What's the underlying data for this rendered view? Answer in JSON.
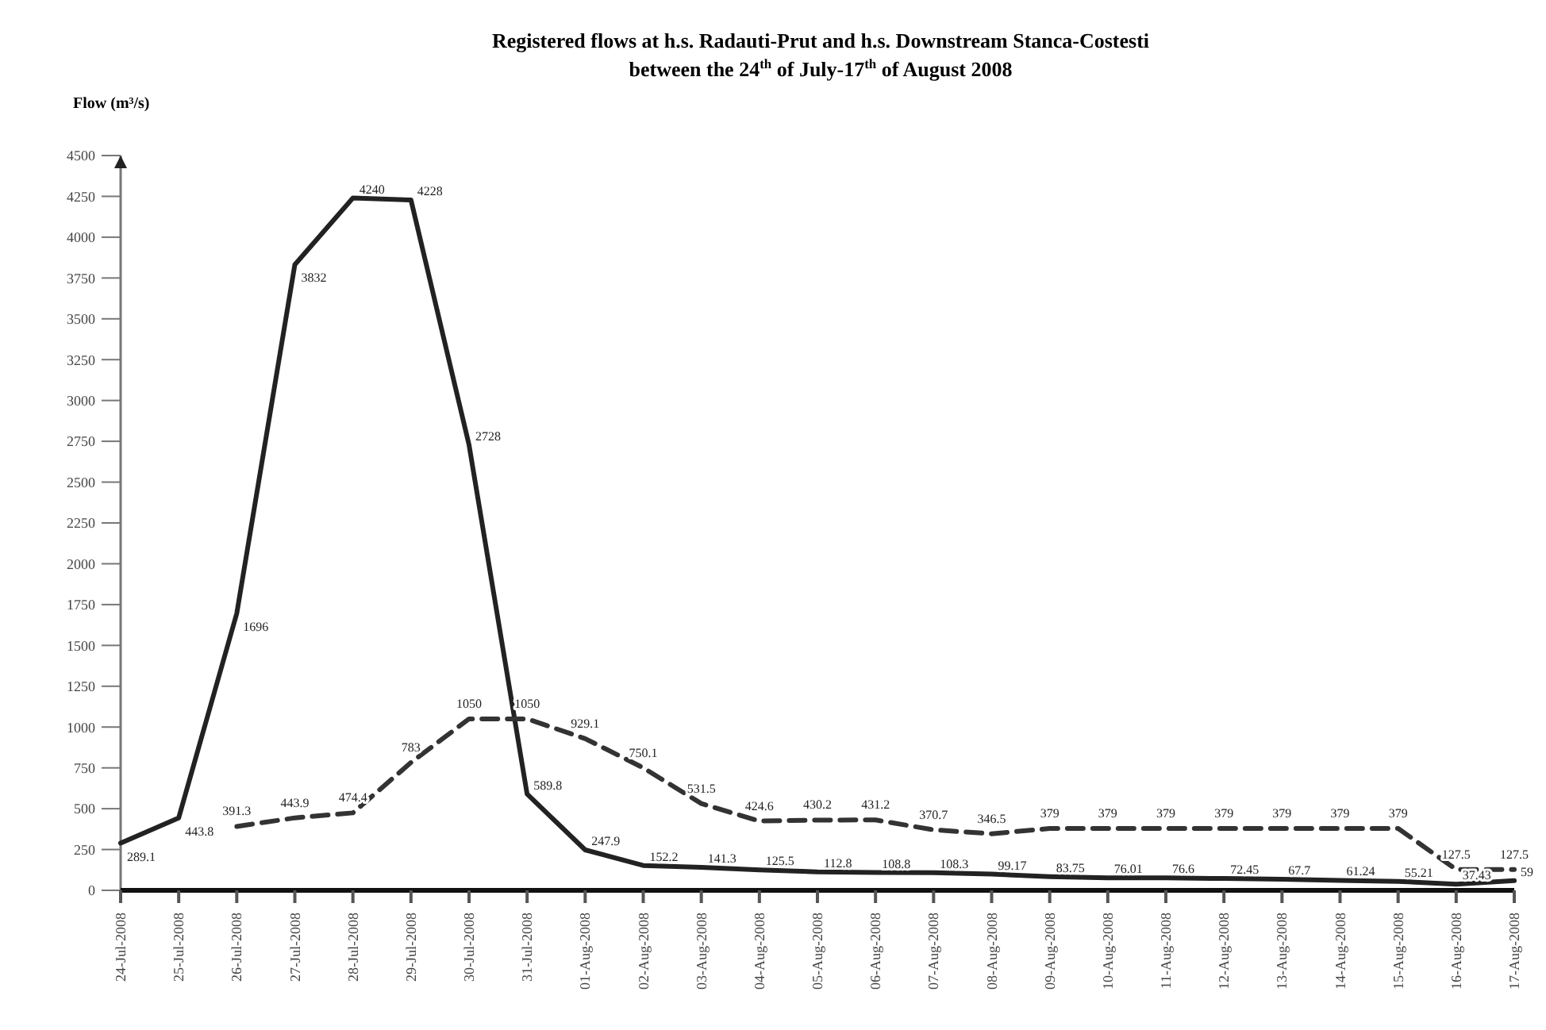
{
  "chart_data": {
    "type": "line",
    "title": "Registered flows at h.s. Radauti-Prut and h.s. Downstream Stanca-Costesti",
    "subtitle": "between the 24$^{th}$ of July-17$^{th}$ of August 2008",
    "ylabel": "Flow (m³/s)",
    "categories": [
      "24-Jul-2008",
      "25-Jul-2008",
      "26-Jul-2008",
      "27-Jul-2008",
      "28-Jul-2008",
      "29-Jul-2008",
      "30-Jul-2008",
      "31-Jul-2008",
      "01-Aug-2008",
      "02-Aug-2008",
      "03-Aug-2008",
      "04-Aug-2008",
      "05-Aug-2008",
      "06-Aug-2008",
      "07-Aug-2008",
      "08-Aug-2008",
      "09-Aug-2008",
      "10-Aug-2008",
      "11-Aug-2008",
      "12-Aug-2008",
      "13-Aug-2008",
      "14-Aug-2008",
      "15-Aug-2008",
      "16-Aug-2008",
      "17-Aug-2008"
    ],
    "series": [
      {
        "color": "#222222",
        "line_style": "solid",
        "values": [
          289.1,
          443.8,
          1696,
          3832,
          4240,
          4228,
          2728,
          589.8,
          247.9,
          152.2,
          141.3,
          125.5,
          112.8,
          108.8,
          108.3,
          99.17,
          83.75,
          76.01,
          76.6,
          72.45,
          67.7,
          61.24,
          55.21,
          37.43,
          59
        ]
      },
      {
        "color": "#333333",
        "line_style": "dashed",
        "values": [
          null,
          null,
          391.3,
          443.9,
          474.4,
          783,
          1050,
          1050,
          929.1,
          750.1,
          531.5,
          424.6,
          430.2,
          431.2,
          370.7,
          346.5,
          379,
          379,
          379,
          379,
          379,
          379,
          379,
          127.5,
          127.5
        ]
      }
    ],
    "ylim": [
      0,
      4500
    ],
    "yticks": [
      0,
      250,
      500,
      750,
      1000,
      1250,
      1500,
      1750,
      2000,
      2250,
      2500,
      2750,
      3000,
      3250,
      3500,
      3750,
      4000,
      4250,
      4500
    ],
    "data_labels": true,
    "grid": false,
    "marker": "none"
  }
}
